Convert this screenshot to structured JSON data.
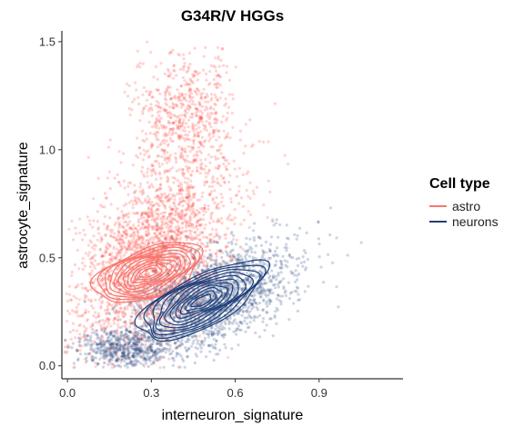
{
  "chart_data": {
    "type": "scatter",
    "title": "G34R/V HGGs",
    "xlabel": "interneuron_signature",
    "ylabel": "astrocyte_signature",
    "xlim": [
      -0.02,
      1.2
    ],
    "ylim": [
      -0.06,
      1.55
    ],
    "x_ticks": [
      0.0,
      0.3,
      0.6,
      0.9
    ],
    "x_tick_labels": [
      "0.0",
      "0.3",
      "0.6",
      "0.9"
    ],
    "y_ticks": [
      0.0,
      0.5,
      1.0,
      1.5
    ],
    "y_tick_labels": [
      "0.0",
      "0.5",
      "1.0",
      "1.5"
    ],
    "grid": false,
    "legend": {
      "title": "Cell type",
      "placement": "right",
      "entries": [
        "astro",
        "neurons"
      ]
    },
    "overlay": "2d-density-contours",
    "series": [
      {
        "name": "astro",
        "color": "#f8766d",
        "point_color": "#ff3b30",
        "cloud": {
          "cx": 0.3,
          "cy": 0.5,
          "sx": 0.14,
          "sy": 0.22,
          "rho": 0.45,
          "n": 2400
        },
        "secondary_cloud": {
          "cx": 0.42,
          "cy": 1.15,
          "sx": 0.09,
          "sy": 0.16,
          "rho": 0.1,
          "n": 650
        },
        "contour_center": [
          0.29,
          0.43
        ],
        "contour_spread": [
          0.21,
          0.2
        ],
        "contour_angle_deg": 28,
        "contour_levels": 11
      },
      {
        "name": "neurons",
        "color": "#1f3f7a",
        "point_color": "#1f3f7a",
        "cloud": {
          "cx": 0.5,
          "cy": 0.3,
          "sx": 0.15,
          "sy": 0.13,
          "rho": 0.55,
          "n": 2100
        },
        "secondary_cloud": {
          "cx": 0.2,
          "cy": 0.08,
          "sx": 0.08,
          "sy": 0.04,
          "rho": 0.0,
          "n": 500
        },
        "contour_center": [
          0.48,
          0.3
        ],
        "contour_spread": [
          0.27,
          0.2
        ],
        "contour_angle_deg": 36,
        "contour_levels": 11
      }
    ]
  }
}
